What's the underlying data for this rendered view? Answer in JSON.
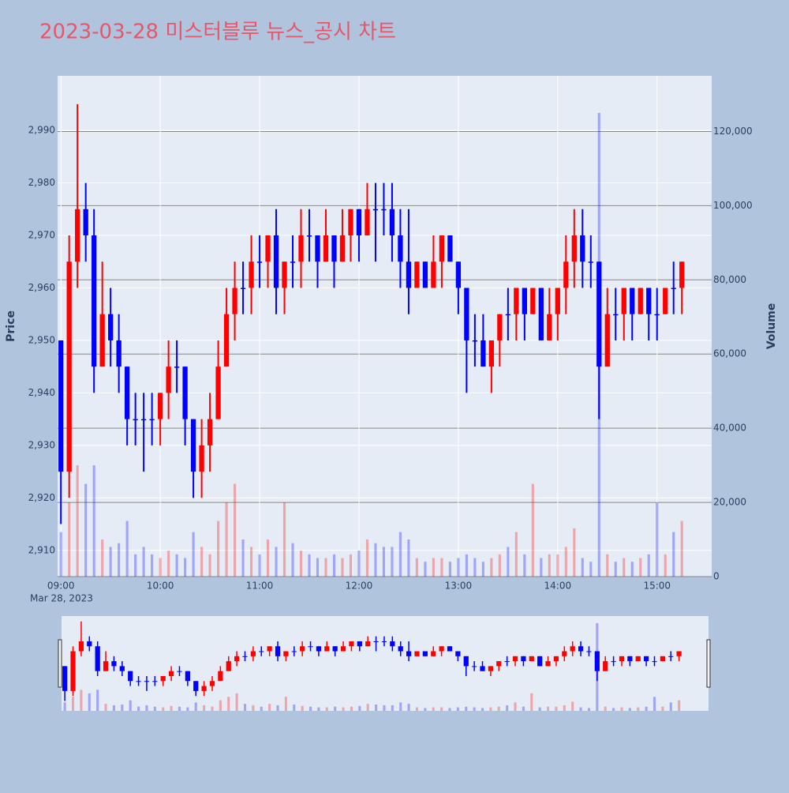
{
  "chart_data": {
    "type": "candlestick",
    "title": "2023-03-28 미스터블루 뉴스_공시 차트",
    "x": [
      "2023-03-28 09:00",
      "2023-03-28 09:05",
      "2023-03-28 09:10",
      "2023-03-28 09:15",
      "2023-03-28 09:20",
      "2023-03-28 09:25",
      "2023-03-28 09:30",
      "2023-03-28 09:35",
      "2023-03-28 09:40",
      "2023-03-28 09:45",
      "2023-03-28 09:50",
      "2023-03-28 09:55",
      "2023-03-28 10:00",
      "2023-03-28 10:05",
      "2023-03-28 10:10",
      "2023-03-28 10:15",
      "2023-03-28 10:20",
      "2023-03-28 10:25",
      "2023-03-28 10:30",
      "2023-03-28 10:35",
      "2023-03-28 10:40",
      "2023-03-28 10:45",
      "2023-03-28 10:50",
      "2023-03-28 10:55",
      "2023-03-28 11:00",
      "2023-03-28 11:05",
      "2023-03-28 11:10",
      "2023-03-28 11:15",
      "2023-03-28 11:20",
      "2023-03-28 11:25",
      "2023-03-28 11:30",
      "2023-03-28 11:35",
      "2023-03-28 11:40",
      "2023-03-28 11:45",
      "2023-03-28 11:50",
      "2023-03-28 11:55",
      "2023-03-28 12:00",
      "2023-03-28 12:05",
      "2023-03-28 12:10",
      "2023-03-28 12:15",
      "2023-03-28 12:20",
      "2023-03-28 12:25",
      "2023-03-28 12:30",
      "2023-03-28 12:35",
      "2023-03-28 12:40",
      "2023-03-28 12:45",
      "2023-03-28 12:50",
      "2023-03-28 12:55",
      "2023-03-28 13:00",
      "2023-03-28 13:05",
      "2023-03-28 13:10",
      "2023-03-28 13:15",
      "2023-03-28 13:20",
      "2023-03-28 13:25",
      "2023-03-28 13:30",
      "2023-03-28 13:35",
      "2023-03-28 13:40",
      "2023-03-28 13:45",
      "2023-03-28 13:50",
      "2023-03-28 13:55",
      "2023-03-28 14:00",
      "2023-03-28 14:05",
      "2023-03-28 14:10",
      "2023-03-28 14:15",
      "2023-03-28 14:20",
      "2023-03-28 14:25",
      "2023-03-28 14:30",
      "2023-03-28 14:35",
      "2023-03-28 14:40",
      "2023-03-28 14:45",
      "2023-03-28 14:50",
      "2023-03-28 14:55",
      "2023-03-28 15:00",
      "2023-03-28 15:05",
      "2023-03-28 15:10",
      "2023-03-28 15:15"
    ],
    "open": [
      2950,
      2925,
      2965,
      2975,
      2970,
      2945,
      2955,
      2950,
      2945,
      2935,
      2935,
      2935,
      2935,
      2940,
      2945,
      2945,
      2935,
      2925,
      2930,
      2935,
      2945,
      2955,
      2960,
      2960,
      2965,
      2965,
      2970,
      2960,
      2965,
      2965,
      2970,
      2970,
      2965,
      2970,
      2965,
      2970,
      2975,
      2970,
      2975,
      2975,
      2975,
      2970,
      2965,
      2960,
      2965,
      2960,
      2965,
      2970,
      2965,
      2960,
      2950,
      2950,
      2945,
      2950,
      2955,
      2955,
      2960,
      2955,
      2960,
      2950,
      2955,
      2960,
      2965,
      2970,
      2965,
      2965,
      2945,
      2955,
      2955,
      2960,
      2955,
      2960,
      2955,
      2955,
      2960,
      2960
    ],
    "high": [
      2950,
      2970,
      2995,
      2980,
      2975,
      2965,
      2960,
      2955,
      2945,
      2940,
      2940,
      2940,
      2940,
      2950,
      2950,
      2945,
      2935,
      2935,
      2940,
      2950,
      2960,
      2965,
      2965,
      2970,
      2970,
      2970,
      2975,
      2965,
      2970,
      2975,
      2975,
      2970,
      2975,
      2970,
      2975,
      2975,
      2975,
      2980,
      2980,
      2980,
      2980,
      2975,
      2975,
      2965,
      2965,
      2970,
      2970,
      2970,
      2965,
      2960,
      2955,
      2955,
      2950,
      2955,
      2960,
      2960,
      2960,
      2960,
      2960,
      2960,
      2960,
      2970,
      2975,
      2975,
      2970,
      2965,
      2960,
      2960,
      2960,
      2960,
      2960,
      2960,
      2960,
      2960,
      2965,
      2965
    ],
    "low": [
      2915,
      2920,
      2960,
      2965,
      2940,
      2945,
      2945,
      2940,
      2930,
      2930,
      2925,
      2930,
      2930,
      2935,
      2940,
      2930,
      2920,
      2920,
      2925,
      2935,
      2945,
      2950,
      2955,
      2955,
      2960,
      2960,
      2955,
      2955,
      2960,
      2960,
      2965,
      2960,
      2965,
      2960,
      2965,
      2965,
      2965,
      2970,
      2965,
      2970,
      2965,
      2960,
      2955,
      2960,
      2960,
      2960,
      2960,
      2965,
      2955,
      2940,
      2945,
      2945,
      2940,
      2945,
      2950,
      2950,
      2950,
      2955,
      2950,
      2950,
      2950,
      2955,
      2960,
      2960,
      2960,
      2935,
      2945,
      2950,
      2950,
      2950,
      2955,
      2950,
      2950,
      2955,
      2955,
      2955
    ],
    "close": [
      2925,
      2965,
      2975,
      2970,
      2945,
      2955,
      2950,
      2945,
      2935,
      2935,
      2935,
      2935,
      2940,
      2945,
      2945,
      2935,
      2925,
      2930,
      2935,
      2945,
      2955,
      2960,
      2960,
      2965,
      2965,
      2970,
      2960,
      2965,
      2965,
      2970,
      2970,
      2965,
      2970,
      2965,
      2970,
      2975,
      2970,
      2975,
      2975,
      2975,
      2970,
      2965,
      2960,
      2965,
      2960,
      2965,
      2970,
      2965,
      2960,
      2950,
      2950,
      2945,
      2950,
      2955,
      2955,
      2960,
      2955,
      2960,
      2950,
      2955,
      2960,
      2965,
      2970,
      2965,
      2965,
      2945,
      2955,
      2955,
      2960,
      2955,
      2960,
      2955,
      2955,
      2960,
      2960,
      2965
    ],
    "volume": [
      12000,
      20000,
      30000,
      25000,
      30000,
      10000,
      8000,
      9000,
      15000,
      6000,
      8000,
      6000,
      5000,
      7000,
      6000,
      5000,
      12000,
      8000,
      6000,
      15000,
      20000,
      25000,
      10000,
      8000,
      6000,
      10000,
      8000,
      20000,
      9000,
      7000,
      6000,
      5000,
      5000,
      6000,
      5000,
      6000,
      7000,
      10000,
      9000,
      8000,
      8000,
      12000,
      10000,
      5000,
      4000,
      5000,
      5000,
      4000,
      5000,
      6000,
      5000,
      4000,
      5000,
      6000,
      8000,
      12000,
      6000,
      25000,
      5000,
      6000,
      6000,
      8000,
      13000,
      5000,
      4000,
      125000,
      6000,
      4000,
      5000,
      4000,
      5000,
      6000,
      20000,
      6000,
      12000,
      15000
    ],
    "increasing_color": "#ff0000",
    "decreasing_color": "#0000ff",
    "xlim": [
      "2023-03-28 08:58",
      "2023-03-28 15:33"
    ],
    "xticks": [
      {
        "value": "2023-03-28 09:00",
        "label": "09:00"
      },
      {
        "value": "2023-03-28 10:00",
        "label": "10:00"
      },
      {
        "value": "2023-03-28 11:00",
        "label": "11:00"
      },
      {
        "value": "2023-03-28 12:00",
        "label": "12:00"
      },
      {
        "value": "2023-03-28 13:00",
        "label": "13:00"
      },
      {
        "value": "2023-03-28 14:00",
        "label": "14:00"
      },
      {
        "value": "2023-03-28 15:00",
        "label": "15:00"
      }
    ],
    "x_date_label": "Mar 28, 2023",
    "ylim": [
      2905,
      3000.4
    ],
    "yticks": [
      {
        "value": 2910,
        "label": "2,910"
      },
      {
        "value": 2920,
        "label": "2,920"
      },
      {
        "value": 2930,
        "label": "2,930"
      },
      {
        "value": 2940,
        "label": "2,940"
      },
      {
        "value": 2950,
        "label": "2,950"
      },
      {
        "value": 2960,
        "label": "2,960"
      },
      {
        "value": 2970,
        "label": "2,970"
      },
      {
        "value": 2980,
        "label": "2,980"
      },
      {
        "value": 2990,
        "label": "2,990"
      }
    ],
    "y2lim": [
      0,
      135000
    ],
    "y2ticks": [
      0,
      {
        "value": 20000,
        "label": "20,000"
      },
      {
        "value": 40000,
        "label": "40,000"
      },
      {
        "value": 60000,
        "label": "60,000"
      },
      {
        "value": 80000,
        "label": "80,000"
      },
      {
        "value": 100000,
        "label": "100,000"
      },
      {
        "value": 120000,
        "label": "120,000"
      }
    ],
    "y_title": "Price",
    "y2_title": "Volume",
    "rangeslider": true
  }
}
